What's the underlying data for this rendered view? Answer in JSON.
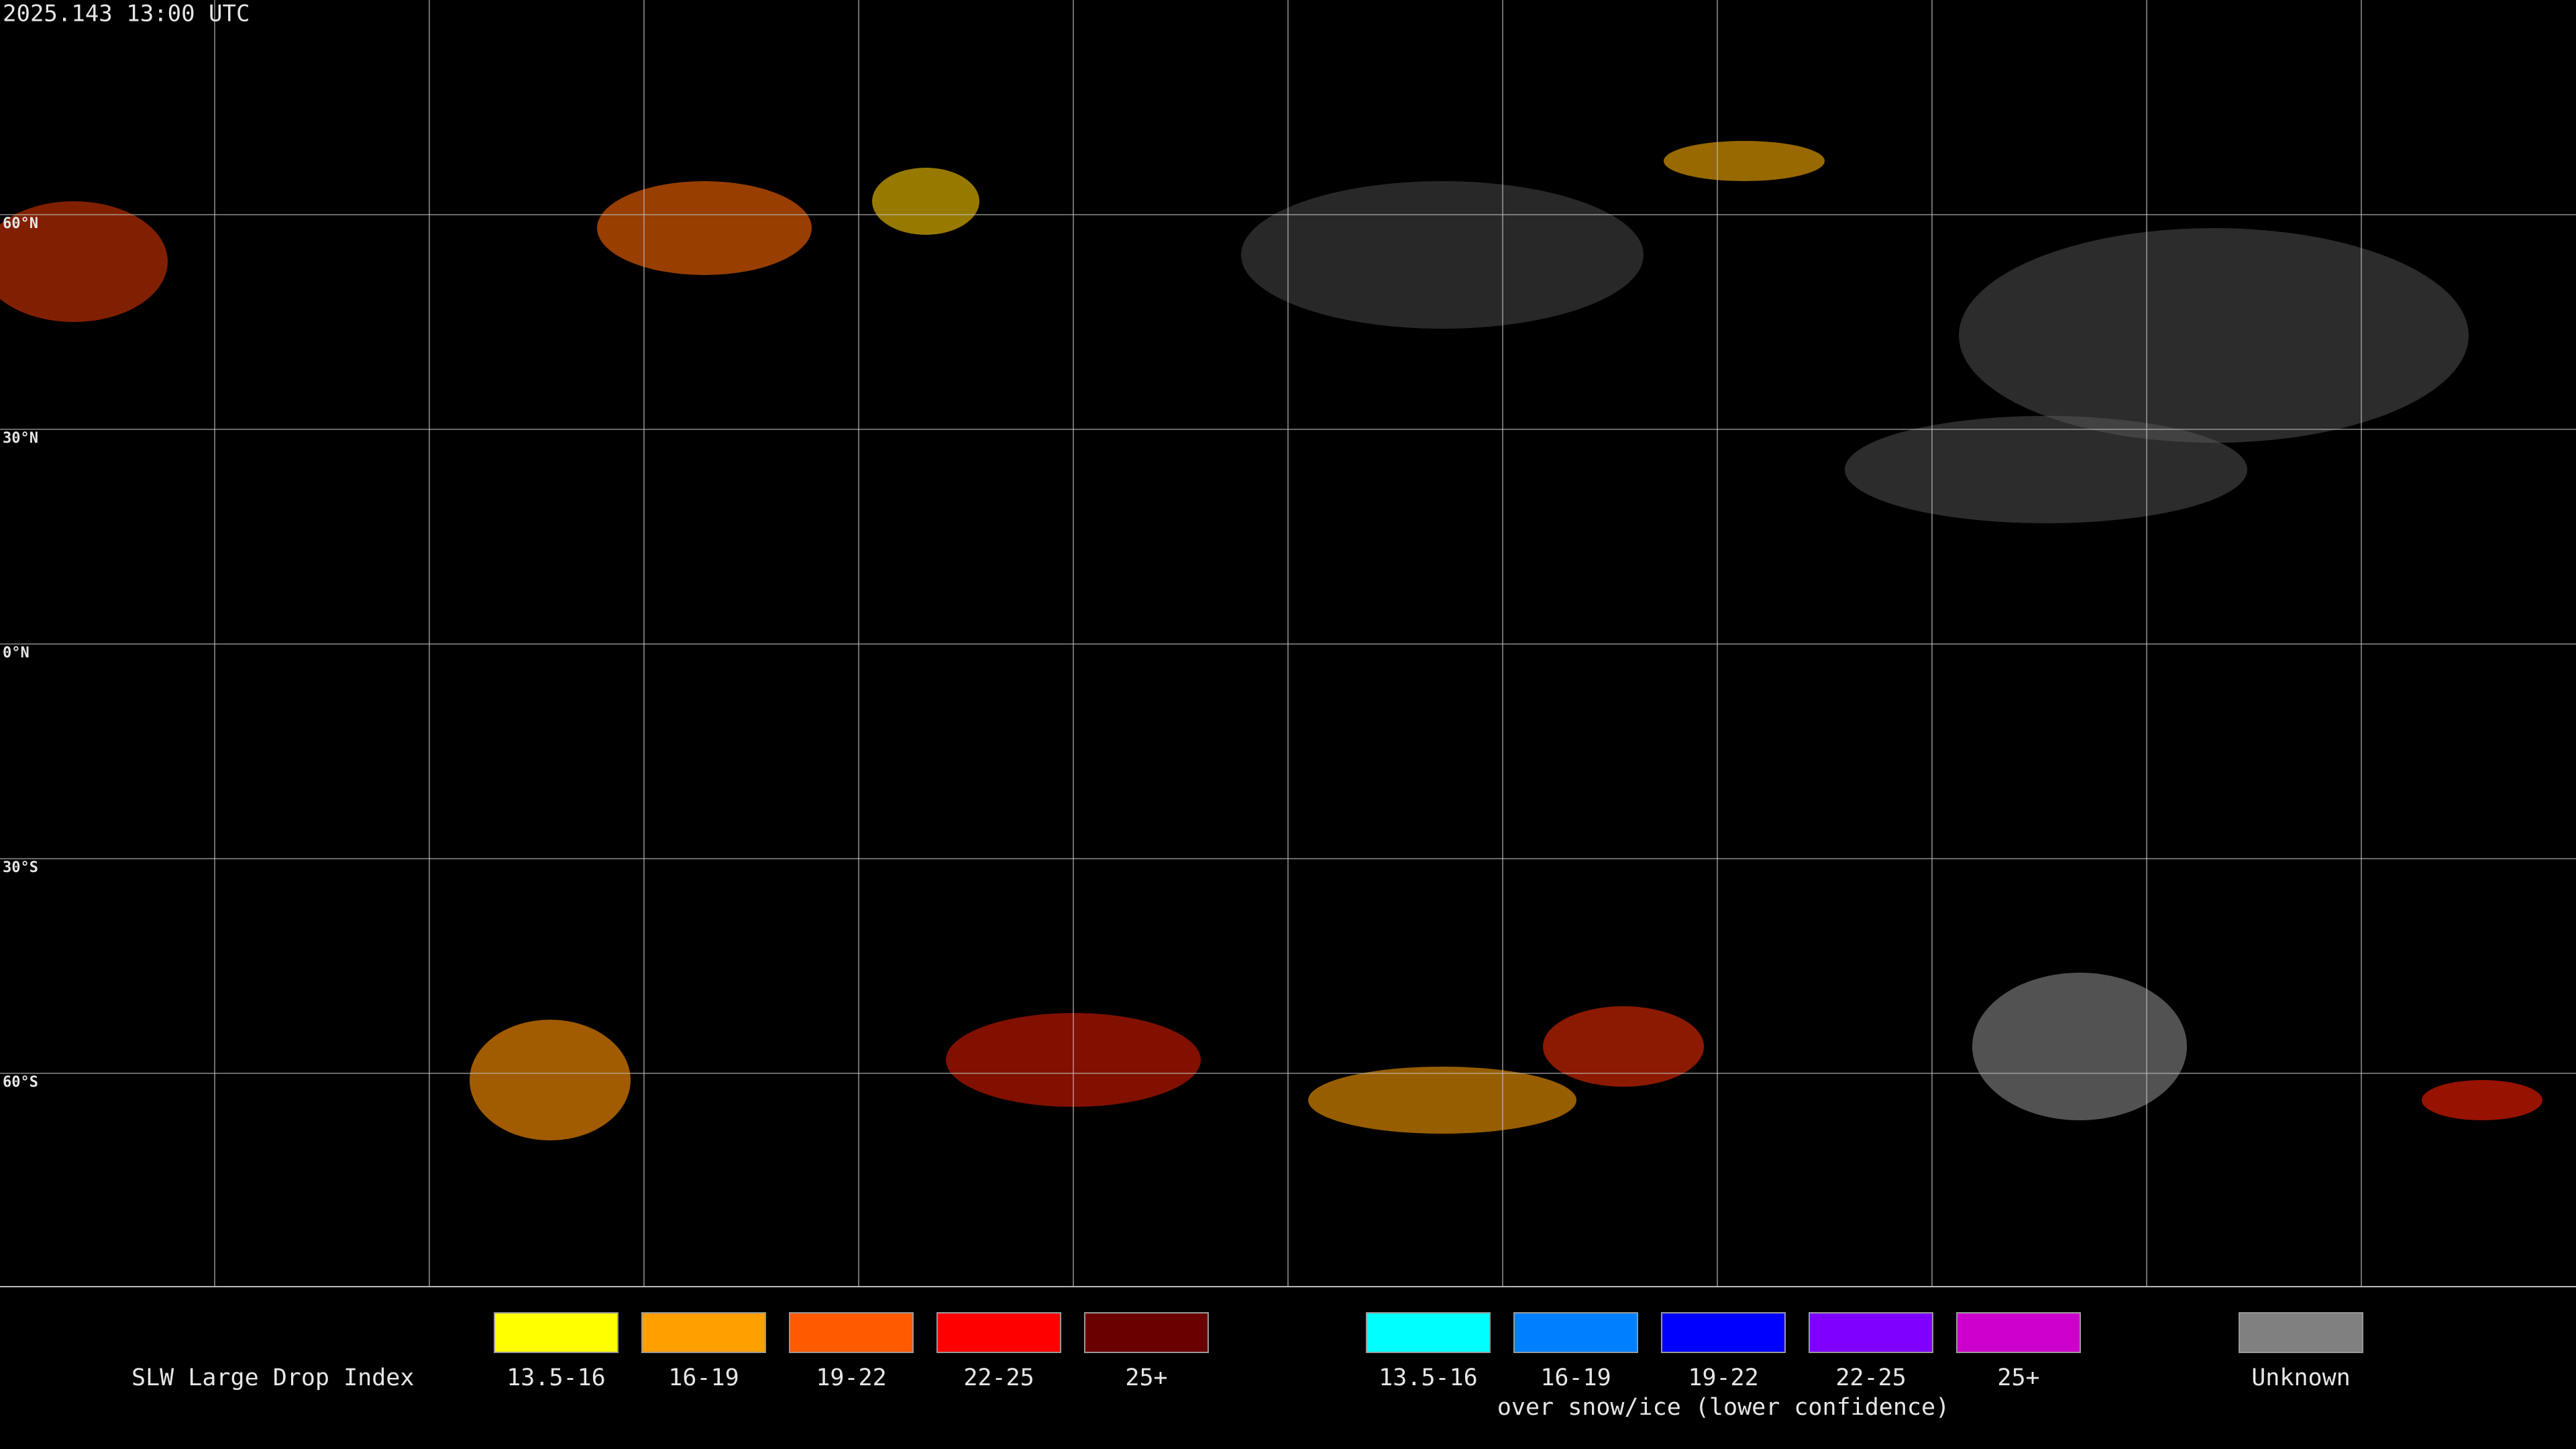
{
  "header": {
    "title": "2025.143 13:00 UTC"
  },
  "map": {
    "latitude_labels": [
      "60°N",
      "30°N",
      "0°N",
      "30°S",
      "60°S"
    ]
  },
  "legend": {
    "title": "SLW Large Drop Index",
    "groups": [
      {
        "items": [
          {
            "label": "13.5-16",
            "color": "#ffff00"
          },
          {
            "label": "16-19",
            "color": "#ff9f00"
          },
          {
            "label": "19-22",
            "color": "#ff5a00"
          },
          {
            "label": "22-25",
            "color": "#ff0000"
          },
          {
            "label": "25+",
            "color": "#6b0000"
          }
        ]
      },
      {
        "items": [
          {
            "label": "13.5-16",
            "color": "#00ffff"
          },
          {
            "label": "16-19",
            "color": "#0080ff"
          },
          {
            "label": "19-22",
            "color": "#0000ff"
          },
          {
            "label": "22-25",
            "color": "#7f00ff"
          },
          {
            "label": "25+",
            "color": "#cc00cc"
          }
        ],
        "caption": "over snow/ice (lower confidence)"
      },
      {
        "items": [
          {
            "label": "Unknown",
            "color": "#808080"
          }
        ]
      }
    ]
  }
}
